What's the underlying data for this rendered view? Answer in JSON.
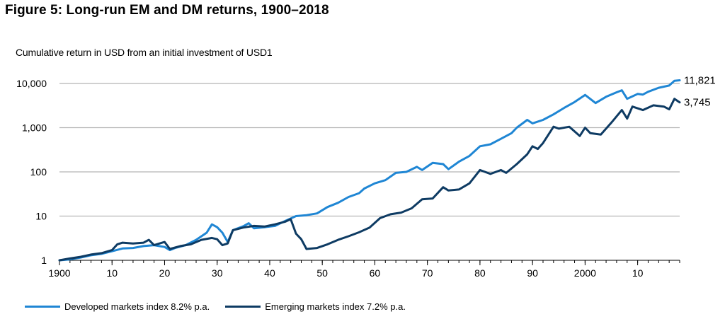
{
  "figure_title": "Figure 5: Long-run EM and DM returns, 1900–2018",
  "colors": {
    "dm": "#1f86d4",
    "em": "#0e3b63",
    "grid": "#b4b4b4",
    "axis": "#000000"
  },
  "chart_data": {
    "type": "line",
    "title": "Figure 5: Long-run EM and DM returns, 1900–2018",
    "subtitle": "Cumulative return in USD from an initial investment of USD1",
    "xlabel": "",
    "ylabel": "",
    "yscale": "log",
    "xlim": [
      1900,
      2018
    ],
    "ylim": [
      1,
      20000
    ],
    "grid": "horizontal",
    "legend_position": "bottom",
    "x_ticks": [
      {
        "value": 1900,
        "label": "1900"
      },
      {
        "value": 1910,
        "label": "10"
      },
      {
        "value": 1920,
        "label": "20"
      },
      {
        "value": 1930,
        "label": "30"
      },
      {
        "value": 1940,
        "label": "40"
      },
      {
        "value": 1950,
        "label": "50"
      },
      {
        "value": 1960,
        "label": "60"
      },
      {
        "value": 1970,
        "label": "70"
      },
      {
        "value": 1980,
        "label": "80"
      },
      {
        "value": 1990,
        "label": "90"
      },
      {
        "value": 2000,
        "label": "2000"
      },
      {
        "value": 2010,
        "label": "10"
      }
    ],
    "y_ticks": [
      {
        "value": 1,
        "label": "1"
      },
      {
        "value": 10,
        "label": "10"
      },
      {
        "value": 100,
        "label": "100"
      },
      {
        "value": 1000,
        "label": "1,000"
      },
      {
        "value": 10000,
        "label": "10,000"
      }
    ],
    "series": [
      {
        "name": "Developed markets index 8.2% p.a.",
        "color": "#1f86d4",
        "end_label": "11,821",
        "points": [
          [
            1900,
            1
          ],
          [
            1902,
            1.05
          ],
          [
            1904,
            1.15
          ],
          [
            1906,
            1.3
          ],
          [
            1908,
            1.4
          ],
          [
            1910,
            1.6
          ],
          [
            1912,
            1.85
          ],
          [
            1914,
            1.9
          ],
          [
            1916,
            2.1
          ],
          [
            1918,
            2.2
          ],
          [
            1920,
            2.0
          ],
          [
            1921,
            1.7
          ],
          [
            1922,
            1.9
          ],
          [
            1924,
            2.2
          ],
          [
            1926,
            2.9
          ],
          [
            1928,
            4.2
          ],
          [
            1929,
            6.5
          ],
          [
            1930,
            5.6
          ],
          [
            1931,
            4.2
          ],
          [
            1932,
            2.6
          ],
          [
            1933,
            4.8
          ],
          [
            1935,
            5.9
          ],
          [
            1936,
            6.9
          ],
          [
            1937,
            5.3
          ],
          [
            1939,
            5.6
          ],
          [
            1941,
            6.0
          ],
          [
            1943,
            7.8
          ],
          [
            1945,
            10.0
          ],
          [
            1947,
            10.5
          ],
          [
            1949,
            11.5
          ],
          [
            1951,
            16
          ],
          [
            1953,
            20
          ],
          [
            1955,
            27
          ],
          [
            1957,
            33
          ],
          [
            1958,
            42
          ],
          [
            1960,
            55
          ],
          [
            1962,
            65
          ],
          [
            1964,
            95
          ],
          [
            1966,
            100
          ],
          [
            1968,
            130
          ],
          [
            1969,
            110
          ],
          [
            1971,
            160
          ],
          [
            1973,
            150
          ],
          [
            1974,
            115
          ],
          [
            1976,
            170
          ],
          [
            1978,
            230
          ],
          [
            1980,
            380
          ],
          [
            1982,
            420
          ],
          [
            1984,
            560
          ],
          [
            1986,
            750
          ],
          [
            1987,
            1000
          ],
          [
            1989,
            1500
          ],
          [
            1990,
            1250
          ],
          [
            1992,
            1500
          ],
          [
            1994,
            2000
          ],
          [
            1996,
            2800
          ],
          [
            1998,
            3800
          ],
          [
            2000,
            5500
          ],
          [
            2002,
            3600
          ],
          [
            2004,
            5000
          ],
          [
            2006,
            6300
          ],
          [
            2007,
            7000
          ],
          [
            2008,
            4500
          ],
          [
            2010,
            5800
          ],
          [
            2011,
            5600
          ],
          [
            2012,
            6500
          ],
          [
            2014,
            8000
          ],
          [
            2016,
            9000
          ],
          [
            2017,
            11500
          ],
          [
            2018,
            11821
          ]
        ]
      },
      {
        "name": "Emerging markets index 7.2% p.a.",
        "color": "#0e3b63",
        "end_label": "3,745",
        "points": [
          [
            1900,
            1
          ],
          [
            1902,
            1.1
          ],
          [
            1904,
            1.2
          ],
          [
            1906,
            1.35
          ],
          [
            1908,
            1.45
          ],
          [
            1910,
            1.7
          ],
          [
            1911,
            2.3
          ],
          [
            1912,
            2.5
          ],
          [
            1914,
            2.4
          ],
          [
            1916,
            2.5
          ],
          [
            1917,
            2.9
          ],
          [
            1918,
            2.2
          ],
          [
            1920,
            2.6
          ],
          [
            1921,
            1.8
          ],
          [
            1923,
            2.1
          ],
          [
            1925,
            2.3
          ],
          [
            1927,
            2.9
          ],
          [
            1929,
            3.2
          ],
          [
            1930,
            3.0
          ],
          [
            1931,
            2.2
          ],
          [
            1932,
            2.4
          ],
          [
            1933,
            4.8
          ],
          [
            1935,
            5.5
          ],
          [
            1937,
            6.0
          ],
          [
            1939,
            5.8
          ],
          [
            1941,
            6.5
          ],
          [
            1943,
            7.5
          ],
          [
            1944,
            8.5
          ],
          [
            1945,
            4.0
          ],
          [
            1946,
            3.0
          ],
          [
            1947,
            1.8
          ],
          [
            1949,
            1.9
          ],
          [
            1951,
            2.3
          ],
          [
            1953,
            2.9
          ],
          [
            1955,
            3.5
          ],
          [
            1957,
            4.3
          ],
          [
            1959,
            5.5
          ],
          [
            1961,
            9
          ],
          [
            1963,
            11
          ],
          [
            1965,
            12
          ],
          [
            1967,
            15
          ],
          [
            1969,
            24
          ],
          [
            1971,
            25
          ],
          [
            1973,
            45
          ],
          [
            1974,
            38
          ],
          [
            1976,
            40
          ],
          [
            1978,
            55
          ],
          [
            1980,
            110
          ],
          [
            1982,
            90
          ],
          [
            1984,
            110
          ],
          [
            1985,
            95
          ],
          [
            1987,
            150
          ],
          [
            1989,
            250
          ],
          [
            1990,
            380
          ],
          [
            1991,
            330
          ],
          [
            1992,
            450
          ],
          [
            1994,
            1050
          ],
          [
            1995,
            950
          ],
          [
            1997,
            1050
          ],
          [
            1999,
            650
          ],
          [
            2000,
            1000
          ],
          [
            2001,
            750
          ],
          [
            2003,
            700
          ],
          [
            2005,
            1300
          ],
          [
            2007,
            2500
          ],
          [
            2008,
            1600
          ],
          [
            2009,
            3000
          ],
          [
            2011,
            2500
          ],
          [
            2013,
            3200
          ],
          [
            2015,
            3000
          ],
          [
            2016,
            2600
          ],
          [
            2017,
            4500
          ],
          [
            2018,
            3745
          ]
        ]
      }
    ]
  }
}
